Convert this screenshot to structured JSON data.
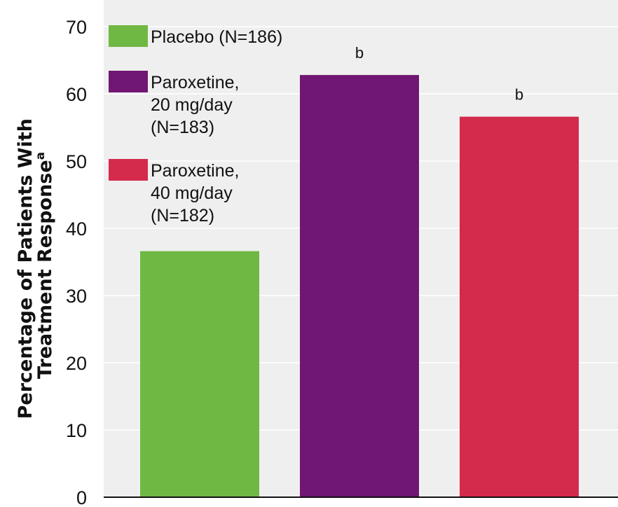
{
  "chart_data": {
    "type": "bar",
    "categories": [
      "Placebo (N=186)",
      "Paroxetine, 20 mg/day (N=183)",
      "Paroxetine, 40 mg/day (N=182)"
    ],
    "values": [
      36.6,
      62.8,
      56.6
    ],
    "colors": [
      "#6fb843",
      "#701673",
      "#d42a4c"
    ],
    "annotations": [
      "",
      "b",
      "b"
    ],
    "ylabel_lines": [
      "Percentage of Patients With",
      "Treatment Response"
    ],
    "ylabel_superscript": "a",
    "ylim": [
      0,
      70
    ],
    "yticks": [
      0,
      10,
      20,
      30,
      40,
      50,
      60,
      70
    ],
    "grid": true,
    "background": "#efefef",
    "legend": {
      "placement": "top-left",
      "items": [
        {
          "lines": [
            "Placebo (N=186)"
          ],
          "color": "#6fb843"
        },
        {
          "lines": [
            "Paroxetine,",
            "20 mg/day",
            "(N=183)"
          ],
          "color": "#701673"
        },
        {
          "lines": [
            "Paroxetine,",
            "40 mg/day",
            "(N=182)"
          ],
          "color": "#d42a4c"
        }
      ]
    }
  }
}
